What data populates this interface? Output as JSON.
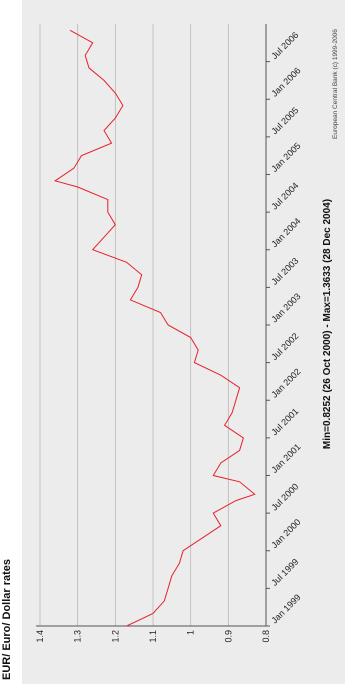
{
  "chart_data": {
    "type": "line",
    "title": "EUR/ Euro/ Dollar rates",
    "source": "European Central Bank (c) 1999-2006",
    "footer": "Min=0.8252 (26 Oct 2000) - Max=1.3633 (28 Dec 2004)",
    "xlabel": "",
    "ylabel": "",
    "ylim": [
      0.8,
      1.4
    ],
    "y_ticks": [
      "0.8",
      "0.9",
      "1",
      "1.1",
      "1.2",
      "1.3",
      "1.4"
    ],
    "x_ticks": [
      "Jan 1999",
      "Jul 1999",
      "Jan 2000",
      "Jul 2000",
      "Jan 2001",
      "Jul 2001",
      "Jan 2002",
      "Jul 2002",
      "Jan 2003",
      "Jul 2003",
      "Jan 2004",
      "Jul 2004",
      "Jan 2005",
      "Jul 2005",
      "Jan 2006",
      "Jul 2006"
    ],
    "grid": true,
    "line_color": "#e8202a",
    "series": [
      {
        "x": [
          "Jan 1999",
          "Mar 1999",
          "May 1999",
          "Jul 1999",
          "Sep 1999",
          "Nov 1999",
          "Jan 2000",
          "Mar 2000",
          "May 2000",
          "Jul 2000",
          "Sep 2000",
          "Oct 2000",
          "Dec 2000",
          "Jan 2001",
          "Mar 2001",
          "May 2001",
          "Jul 2001",
          "Sep 2001",
          "Nov 2001",
          "Jan 2002",
          "Mar 2002",
          "May 2002",
          "Jul 2002",
          "Sep 2002",
          "Nov 2002",
          "Jan 2003",
          "Mar 2003",
          "May 2003",
          "Jul 2003",
          "Sep 2003",
          "Nov 2003",
          "Jan 2004",
          "Mar 2004",
          "May 2004",
          "Jul 2004",
          "Sep 2004",
          "Nov 2004",
          "Dec 2004",
          "Feb 2005",
          "Apr 2005",
          "Jun 2005",
          "Aug 2005",
          "Oct 2005",
          "Dec 2005",
          "Feb 2006",
          "Apr 2006",
          "Jun 2006",
          "Aug 2006",
          "Oct 2006",
          "Dec 2006"
        ],
        "values": [
          1.17,
          1.1,
          1.07,
          1.06,
          1.05,
          1.03,
          1.02,
          0.97,
          0.92,
          0.94,
          0.88,
          0.83,
          0.87,
          0.94,
          0.92,
          0.87,
          0.86,
          0.91,
          0.89,
          0.88,
          0.87,
          0.92,
          0.99,
          0.98,
          1.0,
          1.06,
          1.08,
          1.16,
          1.14,
          1.13,
          1.17,
          1.26,
          1.23,
          1.2,
          1.22,
          1.22,
          1.3,
          1.36,
          1.31,
          1.29,
          1.21,
          1.23,
          1.2,
          1.18,
          1.2,
          1.23,
          1.27,
          1.28,
          1.26,
          1.32
        ]
      }
    ]
  }
}
